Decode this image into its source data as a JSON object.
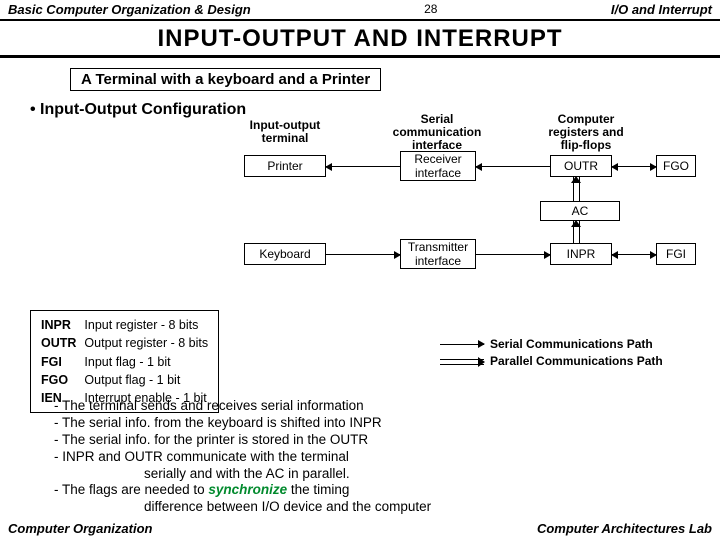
{
  "header": {
    "left": "Basic Computer Organization & Design",
    "page": "28",
    "right": "I/O and Interrupt"
  },
  "title": "INPUT-OUTPUT  AND  INTERRUPT",
  "subtitle": "A Terminal with a keyboard and a Printer",
  "config_heading": "• Input-Output Configuration",
  "columns": {
    "terminal": "Input-output\nterminal",
    "interface": "Serial\ncommunication\ninterface",
    "registers": "Computer\nregisters and\nflip-flops"
  },
  "boxes": {
    "printer": "Printer",
    "keyboard": "Keyboard",
    "receiver": "Receiver\ninterface",
    "transmitter": "Transmitter\ninterface",
    "outr": "OUTR",
    "inpr": "INPR",
    "ac": "AC",
    "fgo": "FGO",
    "fgi": "FGI"
  },
  "registers": [
    {
      "k": "INPR",
      "v": "Input register - 8 bits"
    },
    {
      "k": "OUTR",
      "v": "Output register - 8 bits"
    },
    {
      "k": "FGI",
      "v": "Input flag - 1 bit"
    },
    {
      "k": "FGO",
      "v": "Output flag - 1 bit"
    },
    {
      "k": "IEN",
      "v": "Interrupt enable - 1 bit"
    }
  ],
  "legend": {
    "serial": "Serial Communications Path",
    "parallel": "Parallel Communications Path"
  },
  "body": {
    "l1": "- The terminal sends and receives serial information",
    "l2": "- The serial info. from the keyboard is shifted into INPR",
    "l3": "- The serial info. for the printer is stored in the OUTR",
    "l4": "- INPR and OUTR communicate with the terminal",
    "l5a": "serially and with the AC in parallel.",
    "l6a": "- The flags are needed to ",
    "l6b": "synchronize",
    "l6c": " the timing",
    "l7": "difference between  I/O device and the computer"
  },
  "footer": {
    "left": "Computer Organization",
    "right": "Computer Architectures Lab"
  },
  "style": {
    "bg": "#ffffff",
    "line": "#000000",
    "sync_color": "#018a2d",
    "font": "Arial",
    "title_size": 24,
    "body_size": 13.5
  }
}
